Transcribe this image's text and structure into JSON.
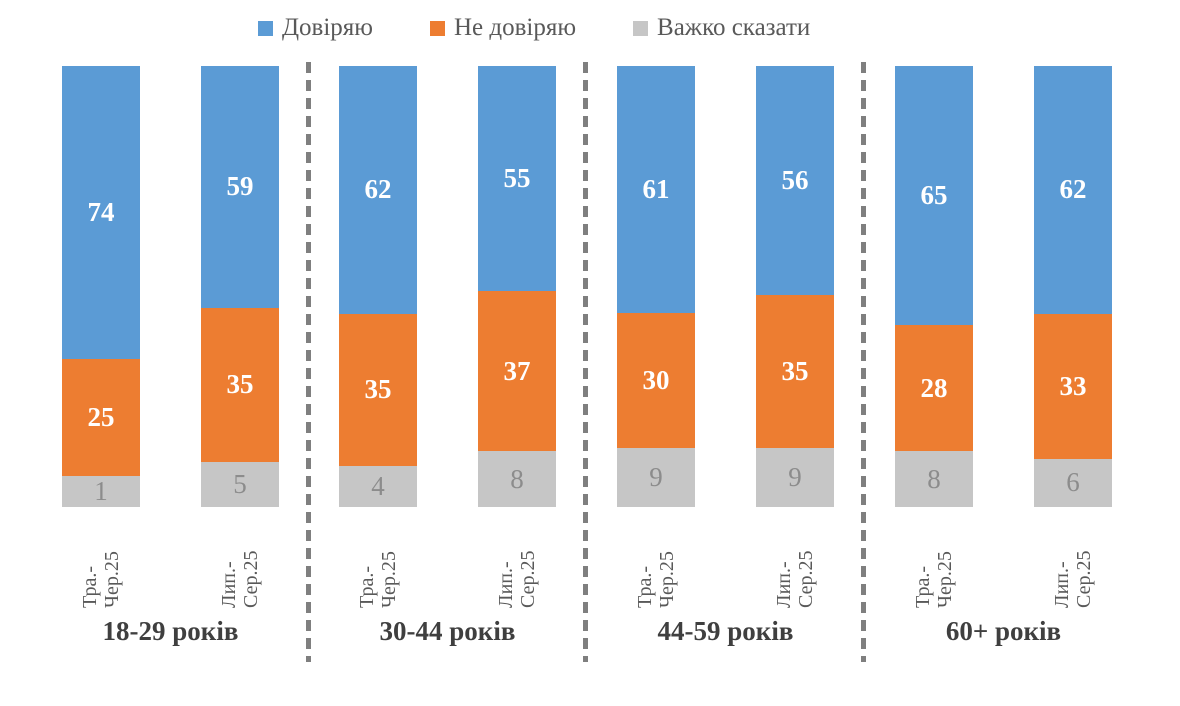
{
  "chart_data": {
    "type": "bar",
    "subtype": "stacked-100-percent-column",
    "title": "",
    "legend_position": "top",
    "gridlines": false,
    "value_range": [
      0,
      100
    ],
    "series": [
      {
        "name": "Довіряю",
        "color": "#5B9BD5",
        "label_color": "#FFFFFF",
        "label_style": "bold"
      },
      {
        "name": "Не довіряю",
        "color": "#ED7D31",
        "label_color": "#FFFFFF",
        "label_style": "bold"
      },
      {
        "name": "Важко сказати",
        "color": "#C6C6C6",
        "label_color": "#8C8C8C",
        "label_style": "normal"
      }
    ],
    "groups": [
      {
        "label": "18-29 років",
        "bars": [
          {
            "tick_lines": [
              "Тра.-",
              "Чер.25"
            ],
            "values": [
              74,
              25,
              1
            ]
          },
          {
            "tick_lines": [
              "Лип.-",
              "Сер.25"
            ],
            "values": [
              59,
              35,
              5
            ]
          }
        ]
      },
      {
        "label": "30-44 років",
        "bars": [
          {
            "tick_lines": [
              "Тра.-",
              "Чер.25"
            ],
            "values": [
              62,
              35,
              4
            ]
          },
          {
            "tick_lines": [
              "Лип.-",
              "Сер.25"
            ],
            "values": [
              55,
              37,
              8
            ]
          }
        ]
      },
      {
        "label": "44-59 років",
        "bars": [
          {
            "tick_lines": [
              "Тра.-",
              "Чер.25"
            ],
            "values": [
              61,
              30,
              9
            ]
          },
          {
            "tick_lines": [
              "Лип.-",
              "Сер.25"
            ],
            "values": [
              56,
              35,
              9
            ]
          }
        ]
      },
      {
        "label": "60+ років",
        "bars": [
          {
            "tick_lines": [
              "Тра.-",
              "Чер.25"
            ],
            "values": [
              65,
              28,
              8
            ]
          },
          {
            "tick_lines": [
              "Лип.-",
              "Сер.25"
            ],
            "values": [
              62,
              33,
              6
            ]
          }
        ]
      }
    ],
    "separator_color": "#7F7F7F"
  }
}
